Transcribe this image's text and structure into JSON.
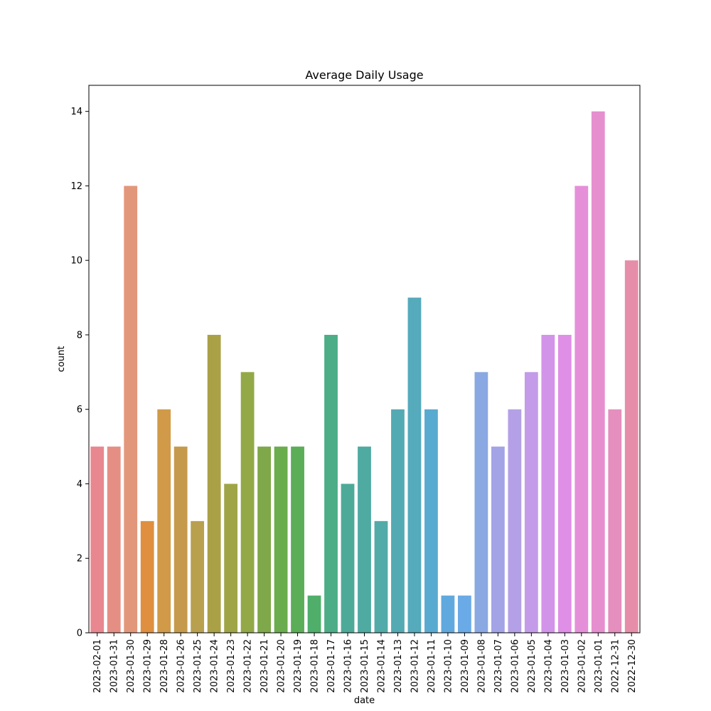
{
  "chart_data": {
    "type": "bar",
    "title": "Average Daily Usage",
    "xlabel": "date",
    "ylabel": "count",
    "ylim": [
      0,
      14.7
    ],
    "yticks": [
      0,
      2,
      4,
      6,
      8,
      10,
      12,
      14
    ],
    "grid": false,
    "categories": [
      "2023-02-01",
      "2023-01-31",
      "2023-01-30",
      "2023-01-29",
      "2023-01-28",
      "2023-01-26",
      "2023-01-25",
      "2023-01-24",
      "2023-01-23",
      "2023-01-22",
      "2023-01-21",
      "2023-01-20",
      "2023-01-19",
      "2023-01-18",
      "2023-01-17",
      "2023-01-16",
      "2023-01-15",
      "2023-01-14",
      "2023-01-13",
      "2023-01-12",
      "2023-01-11",
      "2023-01-10",
      "2023-01-09",
      "2023-01-08",
      "2023-01-07",
      "2023-01-06",
      "2023-01-05",
      "2023-01-04",
      "2023-01-03",
      "2023-01-02",
      "2023-01-01",
      "2022-12-31",
      "2022-12-30"
    ],
    "values": [
      5,
      5,
      12,
      3,
      6,
      5,
      3,
      8,
      4,
      7,
      5,
      5,
      5,
      1,
      8,
      4,
      5,
      3,
      6,
      9,
      6,
      1,
      1,
      7,
      5,
      6,
      7,
      8,
      8,
      12,
      14,
      6,
      10
    ],
    "colors": [
      "#e8878f",
      "#e58f84",
      "#e2977a",
      "#df8f3f",
      "#d09a48",
      "#c69a4d",
      "#b9a04f",
      "#aaa046",
      "#9fa546",
      "#93a847",
      "#7ea84a",
      "#6aac4e",
      "#5bae57",
      "#4fae6a",
      "#4cad86",
      "#4daa98",
      "#4faaa2",
      "#52aba8",
      "#54aab3",
      "#55aabb",
      "#58aad0",
      "#5fa9de",
      "#6aaae6",
      "#8aa8e2",
      "#a3a4e6",
      "#b4a0e6",
      "#c39be8",
      "#d294e9",
      "#df8fe6",
      "#e58fd9",
      "#e58fcf",
      "#e58fbe",
      "#e68ea9"
    ]
  }
}
